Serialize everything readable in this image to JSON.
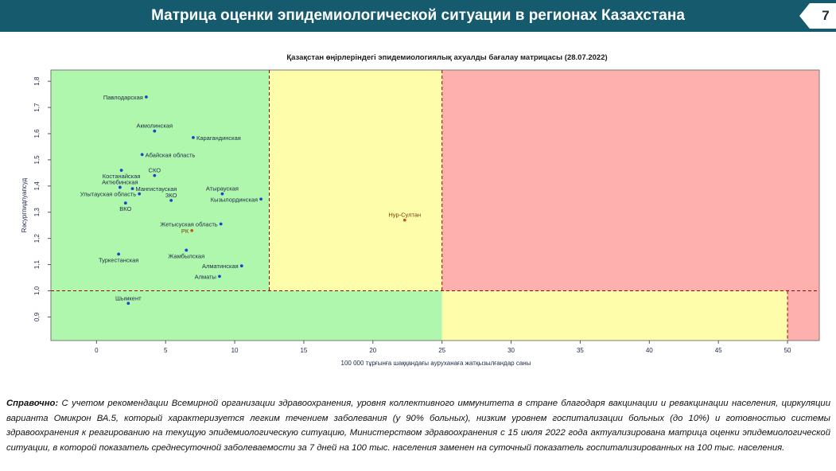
{
  "header": {
    "title": "Матрица оценки эпидемиологической ситуации в регионах Казахстана",
    "page_number": "7"
  },
  "chart_data": {
    "type": "scatter",
    "title": "Қазақстан өңірлеріндегі эпидемиологиялық ахуалды бағалау матрицасы  (28.07.2022)",
    "xlabel": "100 000 тұрғынға шаққандағы ауруханаға жатқызылғандар саны",
    "ylabel": "Rәсургпидпуапсуд",
    "xlim": [
      -3.3,
      52.3
    ],
    "ylim": [
      0.81,
      1.843
    ],
    "x_ticks": [
      0,
      5,
      10,
      15,
      20,
      25,
      30,
      35,
      40,
      45,
      50
    ],
    "y_ticks": [
      {
        "value": 0.9,
        "label": "0,9"
      },
      {
        "value": 1.0,
        "label": "1,0"
      },
      {
        "value": 1.1,
        "label": "1,1"
      },
      {
        "value": 1.2,
        "label": "1,2"
      },
      {
        "value": 1.3,
        "label": "1,3"
      },
      {
        "value": 1.4,
        "label": "1,4"
      },
      {
        "value": 1.5,
        "label": "1,5"
      },
      {
        "value": 1.6,
        "label": "1,6"
      },
      {
        "value": 1.7,
        "label": "1,7"
      },
      {
        "value": 1.8,
        "label": "1,8"
      }
    ],
    "zones": [
      {
        "x": [
          -3.3,
          12.5
        ],
        "y": [
          1.0,
          1.843
        ],
        "color": "#aef7ac"
      },
      {
        "x": [
          12.5,
          25
        ],
        "y": [
          1.0,
          1.843
        ],
        "color": "#fdfdaa"
      },
      {
        "x": [
          25,
          52.3
        ],
        "y": [
          1.0,
          1.843
        ],
        "color": "#fdb0ae"
      },
      {
        "x": [
          -3.3,
          25
        ],
        "y": [
          0.81,
          1.0
        ],
        "color": "#aef7ac"
      },
      {
        "x": [
          25,
          50
        ],
        "y": [
          0.81,
          1.0
        ],
        "color": "#fdfdaa"
      },
      {
        "x": [
          50,
          52.3
        ],
        "y": [
          0.81,
          1.0
        ],
        "color": "#fdb0ae"
      }
    ],
    "threshold_lines": [
      {
        "axis": "x",
        "value": 12.5,
        "y": [
          1.0,
          1.843
        ]
      },
      {
        "axis": "x",
        "value": 25,
        "y": [
          1.0,
          1.843
        ]
      },
      {
        "axis": "x",
        "value": 50,
        "y": [
          0.81,
          1.0
        ]
      },
      {
        "axis": "y",
        "value": 1.0,
        "x": [
          -3.3,
          52.3
        ]
      }
    ],
    "points": [
      {
        "label": "Павлодарская",
        "x": 3.6,
        "y": 1.74,
        "color": "#1f44c8",
        "anchor": "end"
      },
      {
        "label": "Акмолинская",
        "x": 4.2,
        "y": 1.61,
        "color": "#1f44c8",
        "anchor": "middle-above"
      },
      {
        "label": "Карагандинская",
        "x": 7.0,
        "y": 1.585,
        "color": "#1f44c8",
        "anchor": "start"
      },
      {
        "label": "Абайская область",
        "x": 3.3,
        "y": 1.52,
        "color": "#1f44c8",
        "anchor": "start"
      },
      {
        "label": "СКО",
        "x": 4.2,
        "y": 1.44,
        "color": "#1f44c8",
        "anchor": "middle-above"
      },
      {
        "label": "Костанайская",
        "x": 1.8,
        "y": 1.46,
        "color": "#1f44c8",
        "anchor": "middle-below"
      },
      {
        "label": "Актюбинская",
        "x": 1.7,
        "y": 1.395,
        "color": "#1f44c8",
        "anchor": "middle-above"
      },
      {
        "label": "Мангистауская",
        "x": 2.6,
        "y": 1.39,
        "color": "#1f44c8",
        "anchor": "start"
      },
      {
        "label": "Улытауская область",
        "x": 3.1,
        "y": 1.37,
        "color": "#1f44c8",
        "anchor": "end"
      },
      {
        "label": "ЗКО",
        "x": 5.4,
        "y": 1.345,
        "color": "#1f44c8",
        "anchor": "middle-above"
      },
      {
        "label": "Атырауская",
        "x": 9.1,
        "y": 1.37,
        "color": "#1f44c8",
        "anchor": "middle-above"
      },
      {
        "label": "Кызылординская",
        "x": 11.9,
        "y": 1.35,
        "color": "#1f44c8",
        "anchor": "end"
      },
      {
        "label": "ВКО",
        "x": 2.1,
        "y": 1.335,
        "color": "#1f44c8",
        "anchor": "middle-below"
      },
      {
        "label": "Нур-Султан",
        "x": 22.3,
        "y": 1.27,
        "color": "#c05a23",
        "anchor": "middle-above"
      },
      {
        "label": "Жетысуская область",
        "x": 9.0,
        "y": 1.255,
        "color": "#1f44c8",
        "anchor": "end"
      },
      {
        "label": "РК",
        "x": 6.9,
        "y": 1.23,
        "color": "#c05a23",
        "anchor": "end"
      },
      {
        "label": "Жамбылская",
        "x": 6.5,
        "y": 1.155,
        "color": "#1f44c8",
        "anchor": "middle-below"
      },
      {
        "label": "Туркестанская",
        "x": 1.6,
        "y": 1.14,
        "color": "#1f44c8",
        "anchor": "middle-below"
      },
      {
        "label": "Алматинская",
        "x": 10.5,
        "y": 1.095,
        "color": "#1f44c8",
        "anchor": "end"
      },
      {
        "label": "Алматы",
        "x": 8.9,
        "y": 1.055,
        "color": "#1f44c8",
        "anchor": "end"
      },
      {
        "label": "Шымкент",
        "x": 2.3,
        "y": 0.952,
        "color": "#1f44c8",
        "anchor": "middle-above"
      }
    ]
  },
  "note": {
    "label": "Справочно:",
    "text": " С учетом рекомендации Всемирной организации здравоохранения, уровня коллективного иммунитета в стране благодаря вакцинации и ревакцинации населения, циркуляции варианта Омикрон ВА.5, который характеризуется легким течением заболевания (у 90% больных), низким уровнем госпитализации больных (до 10%) и готовностью системы здравоохранения к реагированию на текущую эпидемиологическую ситуацию, Министерством здравоохранения с 15 июля 2022 года актуализирована матрица оценки эпидемиологической ситуации, в которой показатель  среднесуточной заболеваемости за 7 дней на 100 тыс. населения заменен на  суточный показатель госпитализированных на 100 тыс. населения."
  }
}
